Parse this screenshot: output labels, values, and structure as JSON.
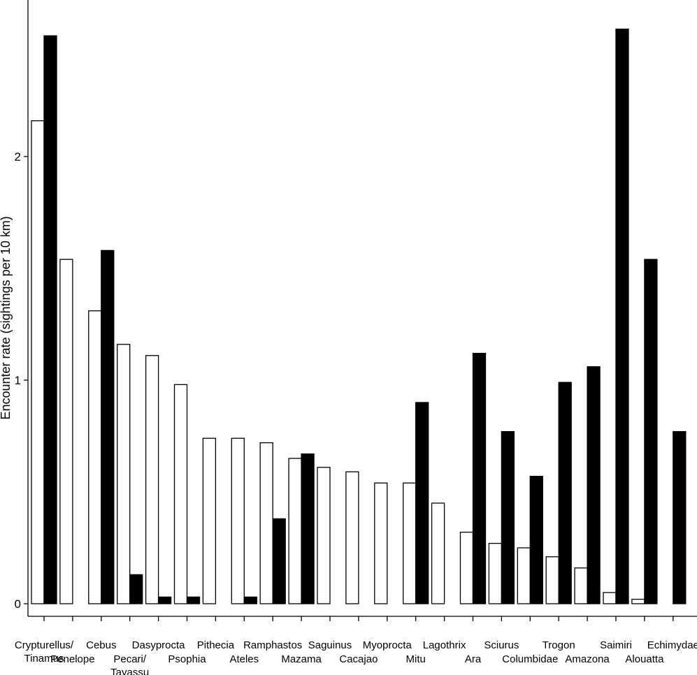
{
  "chart_data": {
    "type": "bar",
    "ylabel": "Encounter rate (sightings per 10 km)",
    "xlabel": "",
    "title": "",
    "ylim": [
      0,
      2.6
    ],
    "yticks": [
      0,
      1,
      2
    ],
    "categories": [
      [
        "Crypturellus/",
        "Tinamus"
      ],
      [
        "Penelope"
      ],
      [
        "Cebus"
      ],
      [
        "Pecari/",
        "Tayassu"
      ],
      [
        "Dasyprocta"
      ],
      [
        "Psophia"
      ],
      [
        "Pithecia"
      ],
      [
        "Ateles"
      ],
      [
        "Ramphastos"
      ],
      [
        "Mazama"
      ],
      [
        "Saguinus"
      ],
      [
        "Cacajao"
      ],
      [
        "Myoprocta"
      ],
      [
        "Mitu"
      ],
      [
        "Lagothrix"
      ],
      [
        "Ara"
      ],
      [
        "Sciurus"
      ],
      [
        "Columbidae"
      ],
      [
        "Trogon"
      ],
      [
        "Amazona"
      ],
      [
        "Saimiri"
      ],
      [
        "Alouatta"
      ],
      [
        "Echimydae"
      ]
    ],
    "series": [
      {
        "fill": "#ffffff",
        "values": [
          2.16,
          1.54,
          1.31,
          1.16,
          1.11,
          0.98,
          0.74,
          0.74,
          0.72,
          0.65,
          0.61,
          0.59,
          0.54,
          0.54,
          0.45,
          0.32,
          0.27,
          0.25,
          0.21,
          0.16,
          0.05,
          0.02,
          0.0
        ]
      },
      {
        "fill": "#000000",
        "values": [
          2.54,
          0.0,
          1.58,
          0.13,
          0.03,
          0.03,
          0.0,
          0.03,
          0.38,
          0.67,
          0.0,
          0.0,
          0.0,
          0.9,
          0.0,
          1.12,
          0.77,
          0.57,
          0.99,
          1.06,
          2.57,
          1.54,
          0.77
        ]
      }
    ]
  }
}
